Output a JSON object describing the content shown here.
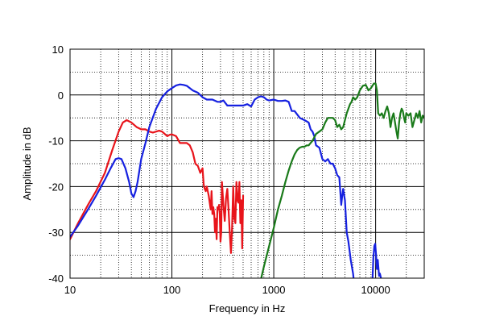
{
  "chart_data": {
    "type": "line",
    "title": "",
    "xlabel": "Frequency  in Hz",
    "ylabel": "Amplitude in dB",
    "x_scale": "log",
    "xlim": [
      10,
      30000
    ],
    "ylim": [
      -40,
      10
    ],
    "grid": true,
    "x_ticks": [
      10,
      100,
      1000,
      10000
    ],
    "x_tick_labels": [
      "10",
      "100",
      "1000",
      "10000"
    ],
    "y_ticks": [
      10,
      0,
      -10,
      -20,
      -30,
      -40
    ],
    "y_tick_labels": [
      "10",
      "0",
      "-10",
      "-20",
      "-30",
      "-40"
    ],
    "series": [
      {
        "color": "#e8141b",
        "x": [
          10,
          12,
          15,
          18,
          22,
          26,
          30,
          33,
          36,
          40,
          45,
          50,
          55,
          60,
          65,
          70,
          75,
          80,
          85,
          90,
          95,
          100,
          110,
          120,
          130,
          140,
          150,
          160,
          170,
          180,
          190,
          200,
          205,
          210,
          215,
          220,
          230,
          240,
          245,
          250,
          255,
          260,
          265,
          270,
          275,
          280,
          285,
          290,
          295,
          300,
          305,
          310,
          320,
          330,
          340,
          350,
          360,
          370,
          380,
          390,
          400,
          410,
          420,
          430,
          440,
          450,
          460,
          470,
          480,
          490,
          500
        ],
        "y": [
          -31.5,
          -28,
          -24,
          -21,
          -17,
          -12,
          -8,
          -6,
          -5.5,
          -6,
          -7,
          -7.5,
          -7.5,
          -8,
          -8.2,
          -8,
          -7.8,
          -8,
          -8.5,
          -9,
          -8.7,
          -8.6,
          -9,
          -10.5,
          -10.5,
          -10.5,
          -11,
          -12.5,
          -15,
          -15.5,
          -17,
          -16,
          -19.5,
          -20.5,
          -21,
          -20,
          -22,
          -25,
          -21,
          -26,
          -24.5,
          -26,
          -30,
          -27,
          -31.5,
          -24.5,
          -25,
          -24,
          -26,
          -32,
          -30,
          -19,
          -24,
          -27.5,
          -22.5,
          -20.5,
          -25,
          -30,
          -34.5,
          -29,
          -20,
          -27,
          -28,
          -19,
          -23,
          -23.5,
          -19,
          -28,
          -23,
          -33.5,
          -22
        ]
      },
      {
        "color": "#1621e0",
        "x": [
          10,
          12,
          15,
          18,
          22,
          25,
          28,
          30,
          32,
          35,
          38,
          40,
          42,
          44,
          46,
          50,
          55,
          60,
          70,
          80,
          90,
          100,
          110,
          120,
          130,
          140,
          160,
          180,
          200,
          220,
          250,
          280,
          300,
          320,
          350,
          400,
          450,
          500,
          550,
          600,
          650,
          700,
          750,
          800,
          850,
          900,
          1000,
          1100,
          1200,
          1300,
          1400,
          1500,
          1600,
          1800,
          2000,
          2200,
          2300,
          2400,
          2500,
          2600,
          2800,
          3000,
          3200,
          3400,
          3600,
          3800,
          4000,
          4200,
          4400,
          4600,
          4700,
          4800,
          5000,
          5200,
          5400,
          5700,
          6000,
          6200
        ],
        "y": [
          -31,
          -28.5,
          -25,
          -22,
          -18.5,
          -16,
          -14,
          -13.8,
          -14,
          -16,
          -19,
          -21.5,
          -22.3,
          -21,
          -19,
          -14,
          -10.5,
          -7,
          -3,
          -0.5,
          0.8,
          1.5,
          2.1,
          2.3,
          2.2,
          2,
          1,
          0.5,
          -0.5,
          -1,
          -1,
          -1.5,
          -1.5,
          -1.2,
          -2.3,
          -2.3,
          -2.3,
          -2.3,
          -2,
          -2.5,
          -1,
          -0.5,
          -0.3,
          -0.5,
          -1,
          -1.2,
          -1,
          -1.3,
          -1.3,
          -1.2,
          -1.5,
          -3.5,
          -3.5,
          -5,
          -5.5,
          -6,
          -7.5,
          -8,
          -9,
          -11,
          -11.5,
          -14,
          -14.5,
          -14,
          -15,
          -15,
          -16,
          -17.5,
          -18,
          -24,
          -22,
          -20.5,
          -23,
          -30,
          -32,
          -36,
          -39,
          -42
        ]
      },
      {
        "color": "#1621e0",
        "x": [
          9300,
          9500,
          9700,
          9900,
          10100,
          10300,
          10500,
          10800,
          11000,
          11300,
          11600
        ],
        "y": [
          -41,
          -35.5,
          -33,
          -32.5,
          -35,
          -38,
          -36,
          -39.5,
          -39,
          -40,
          -42
        ]
      },
      {
        "color": "#1a7a1a",
        "x": [
          700,
          800,
          900,
          1000,
          1100,
          1200,
          1300,
          1400,
          1500,
          1600,
          1700,
          1800,
          1900,
          2000,
          2100,
          2200,
          2400,
          2600,
          2800,
          3000,
          3200,
          3400,
          3600,
          3800,
          4000,
          4200,
          4400,
          4600,
          4800,
          5000,
          5200,
          5400,
          5600,
          5800,
          6000,
          6300,
          6600,
          7000,
          7500,
          8000,
          8500,
          9000,
          9300,
          9600,
          10000,
          10300,
          10600,
          11000,
          11500,
          12000,
          12500,
          13000,
          13500,
          14000,
          14500,
          15000,
          15500,
          16000,
          16500,
          17000,
          17500,
          18000,
          18500,
          19000,
          19500,
          20000,
          21000,
          22000,
          23000,
          24000,
          25000,
          26000,
          27000,
          28000,
          29000,
          30000
        ],
        "y": [
          -43,
          -37.5,
          -33,
          -29,
          -25,
          -22,
          -19,
          -16.5,
          -14.5,
          -13,
          -12,
          -11.5,
          -11.3,
          -11.3,
          -11,
          -11,
          -10,
          -8.5,
          -8,
          -7.5,
          -6,
          -5,
          -5,
          -5,
          -5.5,
          -7,
          -6.5,
          -7.5,
          -7,
          -5.5,
          -4,
          -3,
          -2,
          -1.5,
          -0.5,
          -1,
          -0.5,
          1,
          2,
          2.2,
          1,
          1.5,
          2,
          2.5,
          2.5,
          1,
          -4,
          -4.5,
          -4,
          -5,
          -3.5,
          -2.5,
          -4,
          -7,
          -5,
          -4,
          -6,
          -8,
          -9.5,
          -6,
          -4,
          -3,
          -3.5,
          -5,
          -6,
          -4,
          -4.5,
          -4,
          -7,
          -5.5,
          -4,
          -5,
          -3.5,
          -6,
          -4.5,
          -5
        ]
      }
    ]
  }
}
